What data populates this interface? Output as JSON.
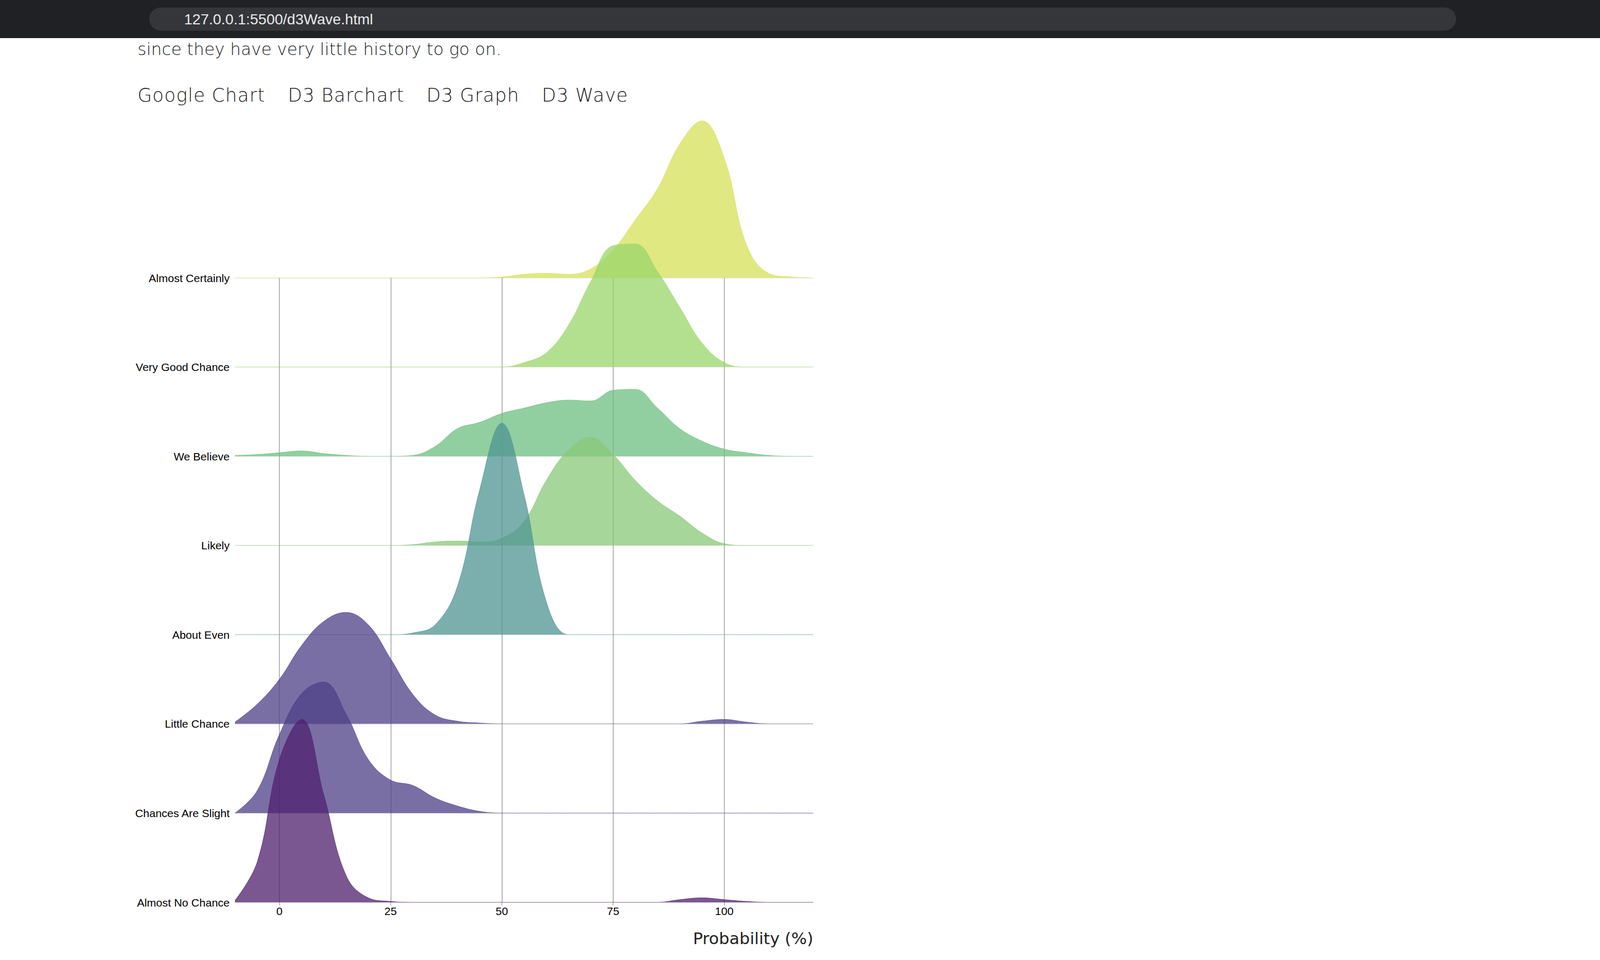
{
  "page": {
    "url": "127.0.0.1:5500/d3Wave.html",
    "intro": "since they have very little history to go on.",
    "nav": [
      "Google Chart",
      "D3 Barchart",
      "D3 Graph",
      "D3 Wave"
    ]
  },
  "chart_data": {
    "type": "ridgeline",
    "x_label": "Probability (%)",
    "x": [
      -10,
      -5,
      0,
      5,
      10,
      15,
      20,
      25,
      30,
      35,
      40,
      45,
      50,
      55,
      60,
      65,
      70,
      75,
      80,
      85,
      90,
      95,
      100,
      105,
      110,
      115,
      120
    ],
    "xlim": [
      -10,
      120
    ],
    "xticks": [
      0,
      25,
      50,
      75,
      100
    ],
    "ylim": [
      0,
      2.5
    ],
    "grid": true,
    "series": [
      {
        "name": "Almost No Chance",
        "color": "#4f1f6e",
        "values": [
          0.02,
          0.45,
          1.6,
          2.05,
          1.2,
          0.3,
          0.05,
          0.01,
          0,
          0,
          0,
          0,
          0,
          0,
          0,
          0,
          0,
          0,
          0,
          0,
          0.03,
          0.05,
          0.03,
          0.01,
          0,
          0,
          0
        ]
      },
      {
        "name": "Chances Are Slight",
        "color": "#4d3f87",
        "values": [
          0,
          0.25,
          0.88,
          1.34,
          1.47,
          1.11,
          0.6,
          0.37,
          0.31,
          0.17,
          0.08,
          0.02,
          0,
          0,
          0,
          0,
          0,
          0,
          0,
          0,
          0,
          0,
          0,
          0,
          0,
          0,
          0
        ]
      },
      {
        "name": "Little Chance",
        "color": "#4d3f87",
        "values": [
          0.02,
          0.22,
          0.5,
          0.88,
          1.15,
          1.25,
          1.11,
          0.73,
          0.33,
          0.1,
          0.03,
          0.01,
          0,
          0,
          0,
          0,
          0,
          0,
          0,
          0,
          0,
          0.03,
          0.05,
          0.02,
          0,
          0,
          0
        ]
      },
      {
        "name": "About Even",
        "color": "#4f9493",
        "values": [
          0,
          0,
          0,
          0,
          0,
          0,
          0,
          0,
          0.02,
          0.11,
          0.54,
          1.62,
          2.37,
          1.57,
          0.37,
          0,
          0,
          0,
          0,
          0,
          0,
          0,
          0,
          0,
          0,
          0,
          0
        ]
      },
      {
        "name": "Likely",
        "color": "#88c878",
        "values": [
          0,
          0,
          0,
          0,
          0,
          0,
          0,
          0,
          0.01,
          0.04,
          0.05,
          0.04,
          0.08,
          0.27,
          0.73,
          1.07,
          1.21,
          1.02,
          0.73,
          0.5,
          0.33,
          0.14,
          0.02,
          0,
          0,
          0,
          0
        ]
      },
      {
        "name": "We Believe",
        "color": "#6cbf80",
        "values": [
          0.01,
          0.02,
          0.04,
          0.06,
          0.03,
          0.01,
          0,
          0,
          0.01,
          0.11,
          0.31,
          0.38,
          0.48,
          0.54,
          0.6,
          0.63,
          0.62,
          0.74,
          0.75,
          0.54,
          0.31,
          0.17,
          0.08,
          0.04,
          0.01,
          0,
          0
        ]
      },
      {
        "name": "Very Good Chance",
        "color": "#9ad66a",
        "values": [
          0,
          0,
          0,
          0,
          0,
          0,
          0,
          0,
          0,
          0,
          0,
          0,
          0,
          0.05,
          0.16,
          0.47,
          0.96,
          1.36,
          1.38,
          1.07,
          0.67,
          0.27,
          0.05,
          0,
          0,
          0,
          0
        ]
      },
      {
        "name": "Almost Certainly",
        "color": "#d5e058",
        "values": [
          0,
          0,
          0,
          0,
          0,
          0,
          0,
          0,
          0,
          0,
          0,
          0,
          0.01,
          0.04,
          0.05,
          0.04,
          0.1,
          0.31,
          0.65,
          1.0,
          1.5,
          1.76,
          1.34,
          0.37,
          0.05,
          0.01,
          0
        ]
      }
    ]
  }
}
